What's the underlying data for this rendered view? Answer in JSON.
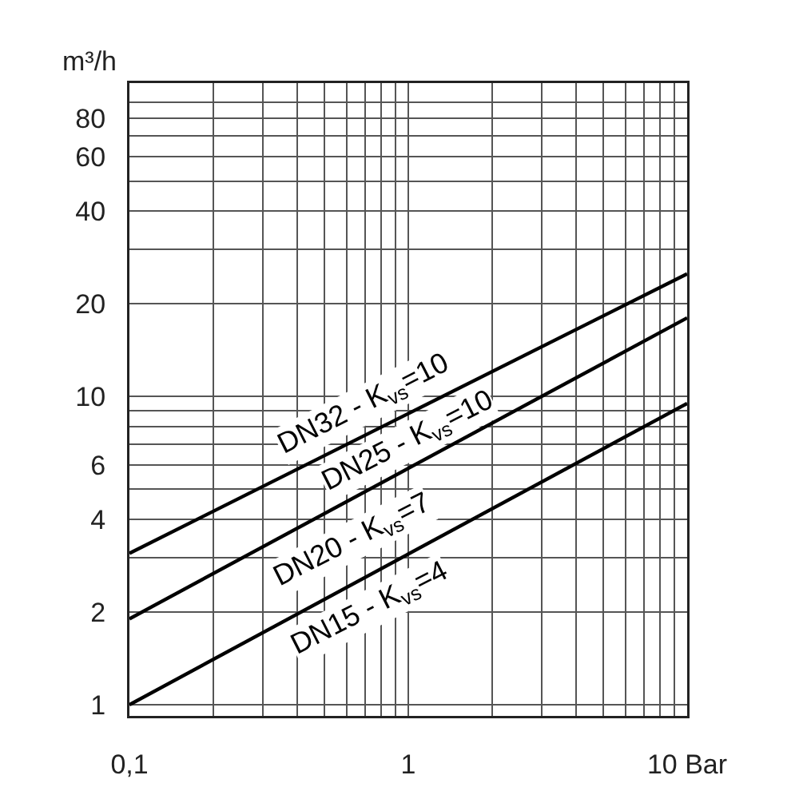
{
  "chart_data": {
    "type": "line",
    "ylabel": "m³/h",
    "log": "xy",
    "grid": true,
    "line_style": "solid",
    "marker": "none",
    "xlim": [
      0.1,
      10
    ],
    "ylim": [
      0.92,
      104
    ],
    "xticks": [
      {
        "value": 0.1,
        "label": "0,1"
      },
      {
        "value": 0.2,
        "label": null
      },
      {
        "value": 0.3,
        "label": null
      },
      {
        "value": 0.4,
        "label": null
      },
      {
        "value": 0.5,
        "label": null
      },
      {
        "value": 0.6,
        "label": null
      },
      {
        "value": 0.7,
        "label": null
      },
      {
        "value": 0.8,
        "label": null
      },
      {
        "value": 0.9,
        "label": null
      },
      1,
      {
        "value": 2,
        "label": null
      },
      {
        "value": 3,
        "label": null
      },
      {
        "value": 4,
        "label": null
      },
      {
        "value": 5,
        "label": null
      },
      {
        "value": 6,
        "label": null
      },
      {
        "value": 7,
        "label": null
      },
      {
        "value": 8,
        "label": null
      },
      {
        "value": 9,
        "label": null
      },
      {
        "value": 10,
        "label": "10 Bar"
      }
    ],
    "yticks": [
      1,
      2,
      {
        "value": 3,
        "label": null
      },
      4,
      {
        "value": 5,
        "label": null
      },
      6,
      {
        "value": 7,
        "label": null
      },
      {
        "value": 8,
        "label": null
      },
      {
        "value": 9,
        "label": null
      },
      10,
      20,
      {
        "value": 30,
        "label": null
      },
      40,
      {
        "value": 50,
        "label": null
      },
      60,
      {
        "value": 70,
        "label": null
      },
      80,
      {
        "value": 90,
        "label": null
      }
    ],
    "x": [
      0.1,
      10
    ],
    "series": [
      {
        "color": "#000000",
        "values": [
          3.1,
          25
        ]
      },
      {
        "color": "#000000",
        "values": [
          1.9,
          18
        ]
      },
      {
        "color": "#000000",
        "values": [
          1.0,
          9.5
        ]
      }
    ],
    "annotations": [
      "DN32 - K$_{vs}$=10",
      "DN25 - K$_{vs}$=10",
      "DN20 - K$_{vs}$=7",
      "DN15 - K$_{vs}$=4"
    ]
  }
}
